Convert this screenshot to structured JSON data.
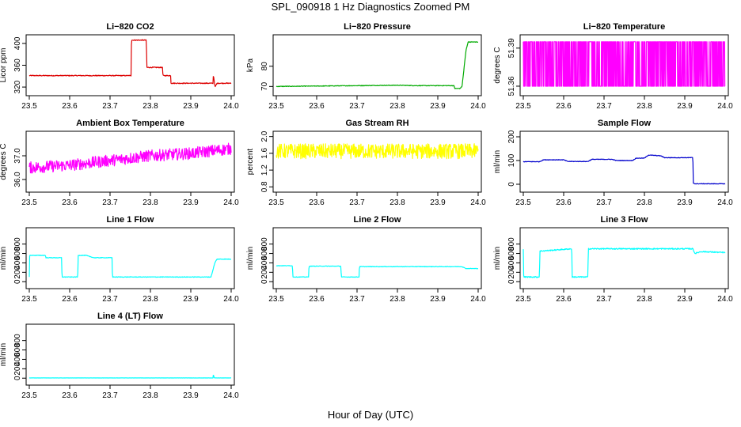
{
  "page": {
    "title": "SPL_090918  1 Hz Diagnostics Zoomed PM",
    "xlabel": "Hour of Day (UTC)"
  },
  "chart_data": [
    {
      "type": "line",
      "title": "Li−820 CO2",
      "ylabel": "Licor ppm",
      "color": "#dd0000",
      "xlim": [
        23.5,
        24.0
      ],
      "ylim": [
        310,
        410
      ],
      "xticks": [
        "23.5",
        "23.6",
        "23.7",
        "23.8",
        "23.9",
        "24.0"
      ],
      "yticks": [
        "320",
        "360",
        "400"
      ],
      "ytick_values": [
        320,
        360,
        400
      ],
      "x": [
        23.5,
        23.6,
        23.65,
        23.75,
        23.752,
        23.753,
        23.79,
        23.791,
        23.83,
        23.831,
        23.84,
        23.85,
        23.851,
        23.87,
        23.9,
        23.95,
        23.955,
        23.956,
        23.96,
        23.965,
        24.0
      ],
      "y": [
        341,
        341,
        341,
        341,
        341,
        406,
        406,
        356,
        356,
        341,
        341,
        341,
        327,
        327,
        327,
        327,
        327,
        343,
        320,
        327,
        327
      ],
      "noise": 0.8
    },
    {
      "type": "line",
      "title": "Li−820 Pressure",
      "ylabel": "kPa",
      "color": "#00aa00",
      "xlim": [
        23.5,
        24.0
      ],
      "ylim": [
        67,
        94
      ],
      "xticks": [
        "23.5",
        "23.6",
        "23.7",
        "23.8",
        "23.9",
        "24.0"
      ],
      "yticks": [
        "70",
        "80"
      ],
      "ytick_values": [
        70,
        80
      ],
      "x": [
        23.5,
        23.6,
        23.7,
        23.8,
        23.85,
        23.9,
        23.94,
        23.942,
        23.955,
        23.96,
        23.97,
        23.975,
        24.0
      ],
      "y": [
        70,
        70.2,
        70.4,
        70.6,
        70.4,
        70.4,
        70.4,
        69,
        69,
        70,
        88,
        92,
        92
      ],
      "noise": 0.15
    },
    {
      "type": "line",
      "title": "Li−820 Temperature",
      "ylabel": "degrees C",
      "color": "#ff00ff",
      "xlim": [
        23.5,
        24.0
      ],
      "ylim": [
        51.355,
        51.398
      ],
      "xticks": [
        "23.5",
        "23.6",
        "23.7",
        "23.8",
        "23.9",
        "24.0"
      ],
      "yticks": [
        "51.36",
        "51.39"
      ],
      "ytick_values": [
        51.36,
        51.39
      ],
      "x": [
        23.5,
        24.0
      ],
      "y": [
        51.36,
        51.395
      ],
      "render": "toggle"
    },
    {
      "type": "line",
      "title": "Ambient Box Temperature",
      "ylabel": "degrees C",
      "color": "#ff00ff",
      "xlim": [
        23.5,
        24.0
      ],
      "ylim": [
        35.6,
        37.9
      ],
      "xticks": [
        "23.5",
        "23.6",
        "23.7",
        "23.8",
        "23.9",
        "24.0"
      ],
      "yticks": [
        "36.0",
        "37.0"
      ],
      "ytick_values": [
        36.0,
        37.0
      ],
      "x": [
        23.5,
        23.6,
        23.7,
        23.8,
        23.9,
        23.95,
        24.0
      ],
      "y": [
        36.5,
        36.6,
        36.8,
        37.0,
        37.1,
        37.2,
        37.3
      ],
      "noise": 0.25
    },
    {
      "type": "line",
      "title": "Gas Stream RH",
      "ylabel": "percent",
      "color": "#ffff00",
      "xlim": [
        23.5,
        24.0
      ],
      "ylim": [
        0.75,
        2.05
      ],
      "xticks": [
        "23.5",
        "23.6",
        "23.7",
        "23.8",
        "23.9",
        "24.0"
      ],
      "yticks": [
        "0.8",
        "1.2",
        "1.6",
        "2.0"
      ],
      "ytick_values": [
        0.8,
        1.2,
        1.6,
        2.0
      ],
      "x": [
        23.5,
        24.0
      ],
      "y": [
        1.65,
        1.65
      ],
      "noise": 0.18
    },
    {
      "type": "line",
      "title": "Sample Flow",
      "ylabel": "ml/min",
      "color": "#0000cc",
      "xlim": [
        23.5,
        24.0
      ],
      "ylim": [
        -20,
        210
      ],
      "xticks": [
        "23.5",
        "23.6",
        "23.7",
        "23.8",
        "23.9",
        "24.0"
      ],
      "yticks": [
        "0",
        "100",
        "200"
      ],
      "ytick_values": [
        0,
        100,
        200
      ],
      "x": [
        23.5,
        23.54,
        23.55,
        23.6,
        23.61,
        23.66,
        23.67,
        23.72,
        23.73,
        23.77,
        23.78,
        23.8,
        23.81,
        23.84,
        23.85,
        23.92,
        23.921,
        23.925,
        24.0
      ],
      "y": [
        95,
        95,
        103,
        103,
        96,
        96,
        105,
        105,
        100,
        100,
        110,
        110,
        123,
        120,
        112,
        112,
        5,
        2,
        2
      ],
      "noise": 1.2
    },
    {
      "type": "line",
      "title": "Line 1 Flow",
      "ylabel": "ml/min",
      "color": "#00ffff",
      "xlim": [
        23.5,
        24.0
      ],
      "ylim": [
        -80,
        1080
      ],
      "xticks": [
        "23.5",
        "23.6",
        "23.7",
        "23.8",
        "23.9",
        "24.0"
      ],
      "yticks": [
        "0",
        "200",
        "400",
        "600",
        "800"
      ],
      "ytick_values": [
        0,
        200,
        400,
        600,
        800
      ],
      "x": [
        23.5,
        23.501,
        23.54,
        23.541,
        23.58,
        23.581,
        23.62,
        23.621,
        23.64,
        23.66,
        23.661,
        23.705,
        23.706,
        23.95,
        23.96,
        23.965,
        24.0
      ],
      "y": [
        100,
        560,
        560,
        510,
        510,
        100,
        100,
        560,
        560,
        510,
        510,
        510,
        100,
        100,
        410,
        480,
        480
      ],
      "noise": 6
    },
    {
      "type": "line",
      "title": "Line 2 Flow",
      "ylabel": "ml/min",
      "color": "#00ffff",
      "xlim": [
        23.5,
        24.0
      ],
      "ylim": [
        -80,
        1080
      ],
      "xticks": [
        "23.5",
        "23.6",
        "23.7",
        "23.8",
        "23.9",
        "24.0"
      ],
      "yticks": [
        "0",
        "200",
        "400",
        "600",
        "800"
      ],
      "ytick_values": [
        0,
        200,
        400,
        600,
        800
      ],
      "x": [
        23.5,
        23.54,
        23.541,
        23.58,
        23.581,
        23.66,
        23.661,
        23.705,
        23.706,
        23.96,
        23.97,
        24.0
      ],
      "y": [
        340,
        340,
        100,
        100,
        330,
        330,
        100,
        100,
        320,
        320,
        280,
        280
      ],
      "noise": 5
    },
    {
      "type": "line",
      "title": "Line 3 Flow",
      "ylabel": "ml/min",
      "color": "#00ffff",
      "xlim": [
        23.5,
        24.0
      ],
      "ylim": [
        -80,
        1080
      ],
      "xticks": [
        "23.5",
        "23.6",
        "23.7",
        "23.8",
        "23.9",
        "24.0"
      ],
      "yticks": [
        "0",
        "200",
        "400",
        "600",
        "800"
      ],
      "ytick_values": [
        0,
        200,
        400,
        600,
        800
      ],
      "x": [
        23.5,
        23.501,
        23.502,
        23.54,
        23.541,
        23.62,
        23.621,
        23.66,
        23.661,
        23.92,
        23.925,
        23.94,
        24.0
      ],
      "y": [
        700,
        100,
        100,
        100,
        650,
        700,
        100,
        100,
        700,
        700,
        600,
        640,
        620
      ],
      "noise": 12
    },
    {
      "type": "line",
      "title": "Line 4 (LT) Flow",
      "ylabel": "ml/min",
      "color": "#00ffff",
      "xlim": [
        23.5,
        24.0
      ],
      "ylim": [
        -80,
        1080
      ],
      "xticks": [
        "23.5",
        "23.6",
        "23.7",
        "23.8",
        "23.9",
        "24.0"
      ],
      "yticks": [
        "0",
        "200",
        "400",
        "600",
        "800"
      ],
      "ytick_values": [
        0,
        200,
        400,
        600,
        800
      ],
      "x": [
        23.5,
        23.955,
        23.956,
        23.958,
        23.96,
        24.0
      ],
      "y": [
        5,
        5,
        80,
        5,
        5,
        5
      ],
      "noise": 1.5
    }
  ]
}
